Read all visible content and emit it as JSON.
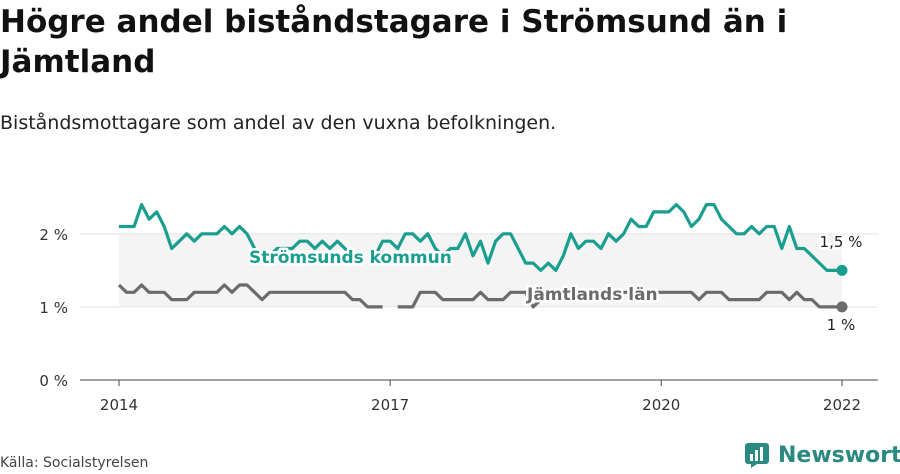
{
  "title": "Högre andel biståndstagare i Strömsund än i Jämtland",
  "subtitle": "Biståndsmottagare som andel av den vuxna befolkningen.",
  "source": "Källa: Socialstyrelsen",
  "brand": {
    "name": "Newsworthy",
    "icon": "newsworthy-logo-icon"
  },
  "colors": {
    "stromsund": "#1a9e8f",
    "jamtland": "#6b6b6b",
    "band": "#f4f4f4",
    "grid": "#e3e3e3"
  },
  "chart_data": {
    "type": "line",
    "x_start": "2014-01",
    "x_end": "2022-01",
    "x_frequency": "monthly",
    "x_ticks": [
      "2014",
      "2017",
      "2020",
      "2022"
    ],
    "y_ticks": [
      "0 %",
      "1 %",
      "2 %"
    ],
    "ylim": [
      0,
      2.6
    ],
    "grid": true,
    "series": [
      {
        "name": "Strömsunds kommun",
        "color": "#1a9e8f",
        "end_label": "1,5 %",
        "values": [
          2.1,
          2.1,
          2.1,
          2.4,
          2.2,
          2.3,
          2.1,
          1.8,
          1.9,
          2.0,
          1.9,
          2.0,
          2.0,
          2.0,
          2.1,
          2.0,
          2.1,
          2.0,
          1.8,
          null,
          1.7,
          1.8,
          1.8,
          1.8,
          1.9,
          1.9,
          1.8,
          1.9,
          1.8,
          1.9,
          1.8,
          1.7,
          null,
          null,
          1.7,
          1.9,
          1.9,
          1.8,
          2.0,
          2.0,
          1.9,
          2.0,
          1.8,
          1.7,
          1.8,
          1.8,
          2.0,
          1.7,
          1.9,
          1.6,
          1.9,
          2.0,
          2.0,
          1.8,
          1.6,
          1.6,
          1.5,
          1.6,
          1.5,
          1.7,
          2.0,
          1.8,
          1.9,
          1.9,
          1.8,
          2.0,
          1.9,
          2.0,
          2.2,
          2.1,
          2.1,
          2.3,
          2.3,
          2.3,
          2.4,
          2.3,
          2.1,
          2.2,
          2.4,
          2.4,
          2.2,
          2.1,
          2.0,
          2.0,
          2.1,
          2.0,
          2.1,
          2.1,
          1.8,
          2.1,
          1.8,
          1.8,
          1.7,
          1.6,
          1.5,
          1.5,
          1.5
        ]
      },
      {
        "name": "Jämtlands län",
        "color": "#6b6b6b",
        "end_label": "1 %",
        "values": [
          1.3,
          1.2,
          1.2,
          1.3,
          1.2,
          1.2,
          1.2,
          1.1,
          1.1,
          1.1,
          1.2,
          1.2,
          1.2,
          1.2,
          1.3,
          1.2,
          1.3,
          1.3,
          1.2,
          1.1,
          1.2,
          1.2,
          1.2,
          1.2,
          1.2,
          1.2,
          1.2,
          1.2,
          1.2,
          1.2,
          1.2,
          1.1,
          1.1,
          1.0,
          1.0,
          1.0,
          null,
          1.0,
          1.0,
          1.0,
          1.2,
          1.2,
          1.2,
          1.1,
          1.1,
          1.1,
          1.1,
          1.1,
          1.2,
          1.1,
          1.1,
          1.1,
          1.2,
          1.2,
          1.2,
          1.0,
          1.1,
          1.1,
          1.2,
          1.2,
          1.2,
          1.2,
          1.2,
          1.2,
          1.2,
          1.2,
          1.2,
          1.2,
          1.2,
          1.2,
          1.2,
          1.2,
          1.2,
          1.2,
          1.2,
          1.2,
          1.2,
          1.1,
          1.2,
          1.2,
          1.2,
          1.1,
          1.1,
          1.1,
          1.1,
          1.1,
          1.2,
          1.2,
          1.2,
          1.1,
          1.2,
          1.1,
          1.1,
          1.0,
          1.0,
          1.0,
          1.0
        ]
      }
    ]
  }
}
